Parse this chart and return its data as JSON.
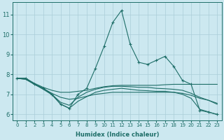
{
  "xlabel": "Humidex (Indice chaleur)",
  "background_color": "#cce8f0",
  "grid_color": "#aacdd8",
  "line_color": "#1e6e68",
  "xlim": [
    -0.5,
    23.5
  ],
  "ylim": [
    5.7,
    11.6
  ],
  "yticks": [
    6,
    7,
    8,
    9,
    10,
    11
  ],
  "xticks": [
    0,
    1,
    2,
    3,
    4,
    5,
    6,
    7,
    8,
    9,
    10,
    11,
    12,
    13,
    14,
    15,
    16,
    17,
    18,
    19,
    20,
    21,
    22,
    23
  ],
  "series": [
    {
      "x": [
        0,
        1,
        2,
        3,
        4,
        5,
        6,
        7,
        8,
        9,
        10,
        11,
        12,
        13,
        14,
        15,
        16,
        17,
        18,
        19,
        20,
        21,
        22,
        23
      ],
      "y": [
        7.8,
        7.8,
        7.5,
        7.3,
        7.0,
        6.5,
        6.3,
        7.0,
        7.3,
        8.3,
        9.4,
        10.6,
        11.2,
        9.5,
        8.6,
        8.5,
        8.7,
        8.9,
        8.4,
        7.7,
        7.5,
        6.2,
        6.1,
        6.0
      ],
      "has_markers": true
    },
    {
      "x": [
        0,
        1,
        2,
        3,
        4,
        5,
        6,
        7,
        8,
        9,
        10,
        11,
        12,
        13,
        14,
        15,
        16,
        17,
        18,
        19,
        20,
        21,
        22,
        23
      ],
      "y": [
        7.8,
        7.8,
        7.55,
        7.35,
        7.2,
        7.1,
        7.1,
        7.15,
        7.2,
        7.3,
        7.38,
        7.43,
        7.45,
        7.45,
        7.45,
        7.45,
        7.45,
        7.48,
        7.5,
        7.5,
        7.5,
        7.5,
        7.5,
        7.5
      ],
      "has_markers": false
    },
    {
      "x": [
        0,
        1,
        2,
        3,
        4,
        5,
        6,
        7,
        8,
        9,
        10,
        11,
        12,
        13,
        14,
        15,
        16,
        17,
        18,
        19,
        20,
        21,
        22,
        23
      ],
      "y": [
        7.8,
        7.75,
        7.5,
        7.3,
        7.05,
        6.85,
        6.75,
        6.8,
        6.9,
        7.0,
        7.05,
        7.1,
        7.1,
        7.1,
        7.1,
        7.1,
        7.1,
        7.1,
        7.1,
        7.05,
        6.95,
        6.8,
        6.7,
        6.55
      ],
      "has_markers": false
    },
    {
      "x": [
        0,
        1,
        2,
        3,
        4,
        5,
        6,
        7,
        8,
        9,
        10,
        11,
        12,
        13,
        14,
        15,
        16,
        17,
        18,
        19,
        20,
        21,
        22,
        23
      ],
      "y": [
        7.8,
        7.75,
        7.5,
        7.3,
        7.0,
        6.6,
        6.45,
        6.85,
        7.1,
        7.25,
        7.35,
        7.4,
        7.4,
        7.38,
        7.35,
        7.35,
        7.3,
        7.28,
        7.25,
        7.2,
        7.05,
        6.85,
        6.7,
        6.5
      ],
      "has_markers": false
    },
    {
      "x": [
        0,
        1,
        2,
        3,
        4,
        5,
        6,
        7,
        8,
        9,
        10,
        11,
        12,
        13,
        14,
        15,
        16,
        17,
        18,
        19,
        20,
        21,
        22,
        23
      ],
      "y": [
        7.8,
        7.8,
        7.5,
        7.25,
        6.98,
        6.52,
        6.3,
        6.65,
        6.88,
        7.1,
        7.2,
        7.25,
        7.3,
        7.25,
        7.2,
        7.18,
        7.15,
        7.15,
        7.1,
        7.0,
        6.8,
        6.25,
        6.12,
        5.98
      ],
      "has_markers": false
    }
  ]
}
